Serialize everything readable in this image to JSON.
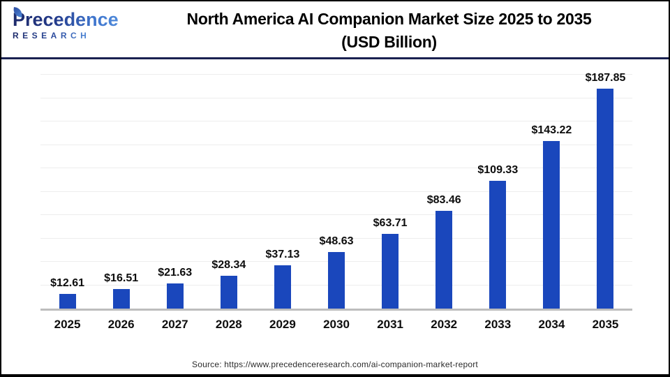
{
  "header": {
    "logo_line1": "Precedence",
    "logo_line2": "RESEARCH",
    "title_line1": "North America AI Companion Market Size 2025 to 2035",
    "title_line2": "(USD Billion)"
  },
  "chart_data": {
    "type": "bar",
    "title": "North America AI Companion Market Size 2025 to 2035 (USD Billion)",
    "xlabel": "",
    "ylabel": "",
    "categories": [
      "2025",
      "2026",
      "2027",
      "2028",
      "2029",
      "2030",
      "2031",
      "2032",
      "2033",
      "2034",
      "2035"
    ],
    "values": [
      12.61,
      16.51,
      21.63,
      28.34,
      37.13,
      48.63,
      63.71,
      83.46,
      109.33,
      143.22,
      187.85
    ],
    "labels": [
      "$12.61",
      "$16.51",
      "$21.63",
      "$28.34",
      "$37.13",
      "$48.63",
      "$63.71",
      "$83.46",
      "$109.33",
      "$143.22",
      "$187.85"
    ],
    "unit": "USD Billion",
    "ylim": [
      0,
      200
    ],
    "gridline_step": 20,
    "grid": true,
    "legend_position": "none",
    "bar_color": "#1A47BC"
  },
  "footer": {
    "source": "Source: https://www.precedenceresearch.com/ai-companion-market-report"
  },
  "colors": {
    "bar": "#1A47BC",
    "divider": "#1a2150",
    "grid": "#ededed",
    "axis_line": "#bdbdbd",
    "title_text": "#000000",
    "logo_navy": "#1e2b6b",
    "logo_blue": "#4f8ada"
  }
}
